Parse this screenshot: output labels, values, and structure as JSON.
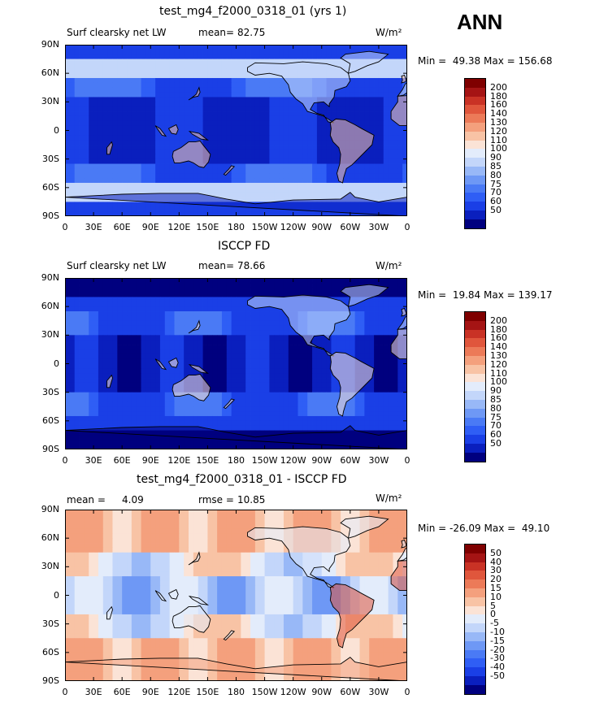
{
  "season": "ANN",
  "x_ticks": [
    "0",
    "30E",
    "60E",
    "90E",
    "120E",
    "150E",
    "180",
    "150W",
    "120W",
    "90W",
    "60W",
    "30W",
    "0"
  ],
  "y_ticks": [
    "90N",
    "60N",
    "30N",
    "0",
    "30S",
    "60S",
    "90S"
  ],
  "colors": {
    "abs_scale": [
      "#00007f",
      "#0a1fbe",
      "#1a3fe6",
      "#2f5ef5",
      "#4a7af5",
      "#6e98f5",
      "#98b8f7",
      "#c3d6fa",
      "#e3ecfb",
      "#fbe3d6",
      "#f8c3a5",
      "#f4a07d",
      "#ec7a58",
      "#e0563c",
      "#c93225",
      "#a51414",
      "#7f0000"
    ],
    "diff_scale": [
      "#00007f",
      "#0a1fbe",
      "#1a3fe6",
      "#2f5ef5",
      "#4a7af5",
      "#6e98f5",
      "#98b8f7",
      "#c3d6fa",
      "#e3ecfb",
      "#fbe3d6",
      "#f8c3a5",
      "#f4a07d",
      "#ec7a58",
      "#e0563c",
      "#c93225",
      "#a51414",
      "#7f0000"
    ]
  },
  "chart_data": [
    {
      "type": "heatmap",
      "title": "test_mg4_f2000_0318_01 (yrs 1)",
      "left_label": "Surf clearsky net LW",
      "stat_label": "mean=",
      "stat_value": "82.75",
      "units": "W/m²",
      "min_label": "Min =",
      "min_value": "49.38",
      "max_label": "Max =",
      "max_value": "156.68",
      "xlim": [
        0,
        360
      ],
      "ylim": [
        -90,
        90
      ],
      "colorbar_levels": [
        "200",
        "180",
        "160",
        "140",
        "130",
        "120",
        "110",
        "100",
        "90",
        "85",
        "80",
        "75",
        "70",
        "60",
        "50"
      ]
    },
    {
      "type": "heatmap",
      "title": "ISCCP FD",
      "left_label": "Surf clearsky net LW",
      "stat_label": "mean=",
      "stat_value": "78.66",
      "units": "W/m²",
      "min_label": "Min =",
      "min_value": "19.84",
      "max_label": "Max =",
      "max_value": "139.17",
      "xlim": [
        0,
        360
      ],
      "ylim": [
        -90,
        90
      ],
      "colorbar_levels": [
        "200",
        "180",
        "160",
        "140",
        "130",
        "120",
        "110",
        "100",
        "90",
        "85",
        "80",
        "75",
        "70",
        "60",
        "50"
      ]
    },
    {
      "type": "heatmap",
      "title": "test_mg4_f2000_0318_01 - ISCCP FD",
      "left_label": "mean =",
      "left_value": "4.09",
      "stat_label": "rmse =",
      "stat_value": "10.85",
      "units": "W/m²",
      "min_label": "Min =",
      "min_value": "-26.09",
      "max_label": "Max =",
      "max_value": "49.10",
      "xlim": [
        0,
        360
      ],
      "ylim": [
        -90,
        90
      ],
      "colorbar_levels": [
        "50",
        "40",
        "30",
        "20",
        "15",
        "10",
        "5",
        "0",
        "-5",
        "-10",
        "-15",
        "-20",
        "-30",
        "-40",
        "-50"
      ]
    }
  ]
}
